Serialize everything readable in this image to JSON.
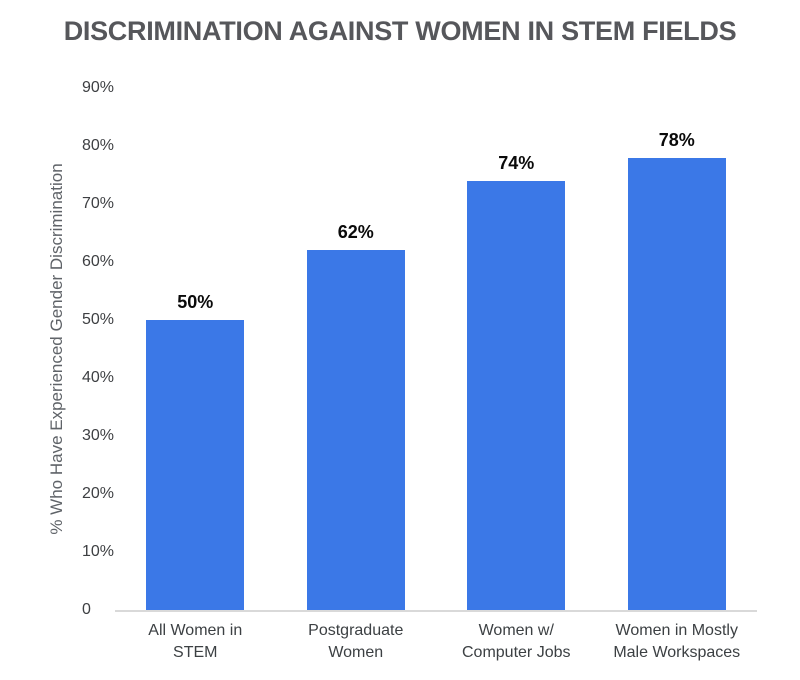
{
  "chart_data": {
    "type": "bar",
    "title": "DISCRIMINATION AGAINST WOMEN IN STEM FIELDS",
    "categories": [
      "All Women in STEM",
      "Postgraduate Women",
      "Women w/ Computer Jobs",
      "Women in Mostly Male Workspaces"
    ],
    "category_display_lines": [
      [
        "All Women in",
        "STEM"
      ],
      [
        "Postgraduate",
        "Women"
      ],
      [
        "Women w/",
        "Computer Jobs"
      ],
      [
        "Women in Mostly",
        "Male Workspaces"
      ]
    ],
    "values": [
      50,
      62,
      74,
      78
    ],
    "value_labels": [
      "50%",
      "62%",
      "74%",
      "78%"
    ],
    "xlabel": "",
    "ylabel": "% Who Have Experienced Gender Discrimination",
    "ylim": [
      0,
      90
    ],
    "yticks": [
      0,
      10,
      20,
      30,
      40,
      50,
      60,
      70,
      80,
      90
    ],
    "ytick_labels": [
      "0",
      "10%",
      "20%",
      "30%",
      "40%",
      "50%",
      "60%",
      "70%",
      "80%",
      "90%"
    ],
    "grid": false,
    "legend_position": "none",
    "colors": {
      "bar": "#3b78e7",
      "axis_line": "#d9d9d9",
      "title_text": "#56575b",
      "tick_text": "#3d3f42",
      "axis_title_text": "#5f6368",
      "category_text": "#3c4043",
      "value_label_text": "#0a0a0a",
      "background": "#ffffff"
    }
  }
}
